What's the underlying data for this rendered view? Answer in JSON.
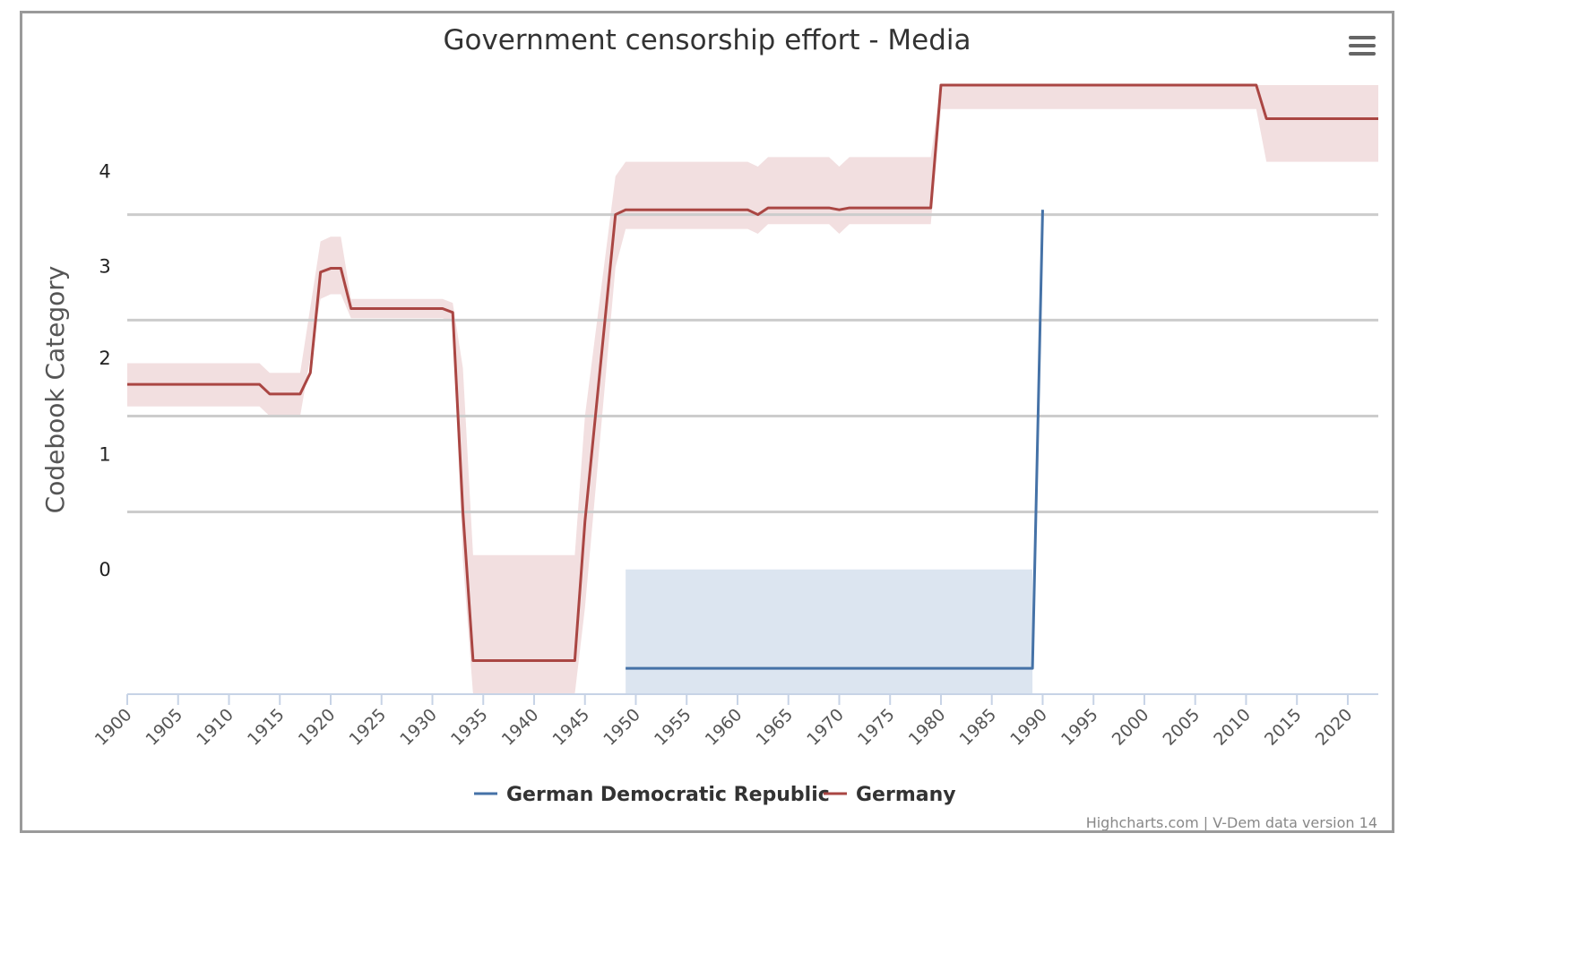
{
  "chart_data": {
    "type": "line",
    "title": "Government censorship effort - Media",
    "ylabel": "Codebook Category",
    "xlabel": "",
    "x_tick_labels": [
      "1900",
      "1905",
      "1910",
      "1915",
      "1920",
      "1925",
      "1930",
      "1935",
      "1940",
      "1945",
      "1950",
      "1955",
      "1960",
      "1965",
      "1970",
      "1975",
      "1980",
      "1985",
      "1990",
      "1995",
      "2000",
      "2005",
      "2010",
      "2015",
      "2020"
    ],
    "y_ticks": [
      {
        "label": "0",
        "value": -0.1
      },
      {
        "label": "1",
        "value": 1.1
      },
      {
        "label": "2",
        "value": 2.1
      },
      {
        "label": "3",
        "value": 3.06
      },
      {
        "label": "4",
        "value": 4.05
      }
    ],
    "y_gridlines": [
      0.5,
      1.5,
      2.5,
      3.6
    ],
    "xlim": [
      1900,
      2023
    ],
    "ylim": [
      -1.4,
      4.95
    ],
    "series": [
      {
        "name": "German Democratic Republic",
        "color": "#4572A7",
        "band_color": "#dce5f0",
        "points": [
          [
            1949,
            -1.13
          ],
          [
            1989,
            -1.13
          ],
          [
            1990,
            3.65
          ]
        ],
        "band_upper": [
          [
            1949,
            -0.1
          ],
          [
            1989,
            -0.1
          ]
        ],
        "band_lower": [
          [
            1949,
            -1.4
          ],
          [
            1989,
            -1.4
          ]
        ]
      },
      {
        "name": "Germany",
        "color": "#AA4643",
        "band_color": "#f2dfe0",
        "points": [
          [
            1900,
            1.83
          ],
          [
            1913,
            1.83
          ],
          [
            1914,
            1.73
          ],
          [
            1917,
            1.73
          ],
          [
            1918,
            1.95
          ],
          [
            1919,
            3.0
          ],
          [
            1920,
            3.04
          ],
          [
            1921,
            3.04
          ],
          [
            1922,
            2.62
          ],
          [
            1931,
            2.62
          ],
          [
            1932,
            2.58
          ],
          [
            1933,
            0.5
          ],
          [
            1934,
            -1.05
          ],
          [
            1944,
            -1.05
          ],
          [
            1945,
            0.4
          ],
          [
            1948,
            3.6
          ],
          [
            1949,
            3.65
          ],
          [
            1961,
            3.65
          ],
          [
            1962,
            3.6
          ],
          [
            1963,
            3.67
          ],
          [
            1969,
            3.67
          ],
          [
            1970,
            3.65
          ],
          [
            1971,
            3.67
          ],
          [
            1979,
            3.67
          ],
          [
            1980,
            4.95
          ],
          [
            2011,
            4.95
          ],
          [
            2012,
            4.6
          ],
          [
            2023,
            4.6
          ]
        ],
        "band_upper": [
          [
            1900,
            2.05
          ],
          [
            1913,
            2.05
          ],
          [
            1914,
            1.95
          ],
          [
            1917,
            1.95
          ],
          [
            1919,
            3.32
          ],
          [
            1920,
            3.37
          ],
          [
            1921,
            3.37
          ],
          [
            1922,
            2.72
          ],
          [
            1931,
            2.72
          ],
          [
            1932,
            2.68
          ],
          [
            1933,
            2.0
          ],
          [
            1934,
            0.05
          ],
          [
            1944,
            0.05
          ],
          [
            1945,
            1.5
          ],
          [
            1948,
            4.0
          ],
          [
            1949,
            4.15
          ],
          [
            1961,
            4.15
          ],
          [
            1962,
            4.1
          ],
          [
            1963,
            4.2
          ],
          [
            1969,
            4.2
          ],
          [
            1970,
            4.1
          ],
          [
            1971,
            4.2
          ],
          [
            1979,
            4.2
          ],
          [
            1980,
            4.95
          ],
          [
            2023,
            4.95
          ]
        ],
        "band_lower": [
          [
            1900,
            1.6
          ],
          [
            1913,
            1.6
          ],
          [
            1914,
            1.5
          ],
          [
            1917,
            1.5
          ],
          [
            1919,
            2.72
          ],
          [
            1920,
            2.77
          ],
          [
            1921,
            2.77
          ],
          [
            1922,
            2.52
          ],
          [
            1931,
            2.52
          ],
          [
            1932,
            2.48
          ],
          [
            1933,
            0.0
          ],
          [
            1934,
            -1.4
          ],
          [
            1944,
            -1.4
          ],
          [
            1945,
            -0.5
          ],
          [
            1948,
            3.05
          ],
          [
            1949,
            3.45
          ],
          [
            1961,
            3.45
          ],
          [
            1962,
            3.4
          ],
          [
            1963,
            3.5
          ],
          [
            1969,
            3.5
          ],
          [
            1970,
            3.4
          ],
          [
            1971,
            3.5
          ],
          [
            1979,
            3.5
          ],
          [
            1980,
            4.7
          ],
          [
            2011,
            4.7
          ],
          [
            2012,
            4.15
          ],
          [
            2023,
            4.15
          ]
        ]
      }
    ],
    "legend_position": "bottom-center",
    "credit": "Highcharts.com | V-Dem data version 14"
  },
  "ui": {
    "menu_icon": "hamburger-menu-icon"
  }
}
